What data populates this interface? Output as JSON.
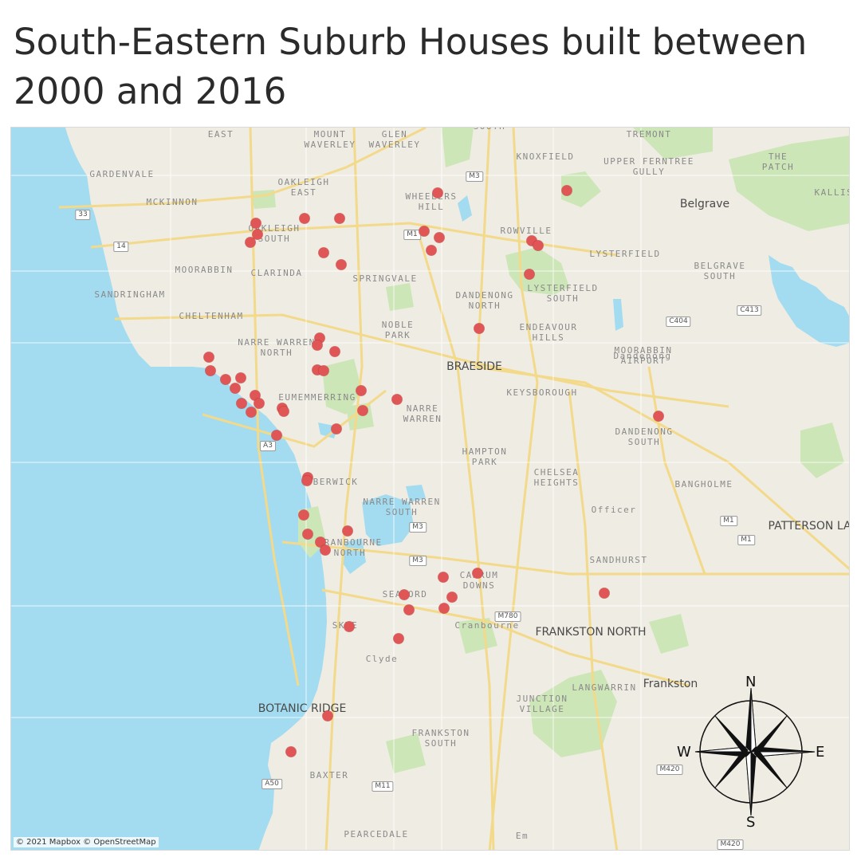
{
  "title": "South-Eastern Suburb Houses built between 2000 and 2016",
  "map": {
    "attribution": "© 2021 Mapbox © OpenStreetMap",
    "compass": {
      "n": "N",
      "s": "S",
      "e": "E",
      "w": "W"
    },
    "colors": {
      "water": "#a3dcf0",
      "land": "#efece3",
      "park": "#cde6b8",
      "road": "#f3d98a",
      "dot": "#e05555"
    },
    "labels": [
      "EAST",
      "MOUNT WAVERLEY",
      "GLEN WAVERLEY",
      "SOUTH",
      "TREMONT",
      "KNOXFIELD",
      "THE PATCH",
      "UPPER FERNTREE GULLY",
      "KALLISTA",
      "GARDENVALE",
      "OAKLEIGH EAST",
      "WHEELERS HILL",
      "MCKINNON",
      "OAKLEIGH SOUTH",
      "ROWVILLE",
      "Belgrave",
      "LYSTERFIELD",
      "BELGRAVE SOUTH",
      "MOORABBIN",
      "CLARINDA",
      "SPRINGVALE",
      "LYSTERFIELD SOUTH",
      "SANDRINGHAM",
      "DANDENONG NORTH",
      "CHELTENHAM",
      "NOBLE PARK",
      "ENDEAVOUR HILLS",
      "MOORABBIN AIRPORT",
      "NARRE WARREN NORTH",
      "Dandenong",
      "BRAESIDE",
      "EUMEMMERRING",
      "KEYSBOROUGH",
      "NARRE WARREN",
      "DANDENONG SOUTH",
      "HAMPTON PARK",
      "CHELSEA HEIGHTS",
      "BERWICK",
      "BANGHOLME",
      "NARRE WARREN SOUTH",
      "Officer",
      "PATTERSON LAKES",
      "CRANBOURNE NORTH",
      "SANDHURST",
      "CARRUM DOWNS",
      "SEAFORD",
      "SKYE",
      "Cranbourne",
      "FRANKSTON NORTH",
      "Clyde",
      "Frankston",
      "BOTANIC RIDGE",
      "JUNCTION VILLAGE",
      "LANGWARRIN",
      "FRANKSTON SOUTH",
      "BAXTER",
      "PEARCEDALE",
      "Em"
    ],
    "road_shields": [
      "M3",
      "33",
      "M1",
      "14",
      "C413",
      "C404",
      "A3",
      "M3",
      "M3",
      "M1",
      "M1",
      "M780",
      "M420",
      "A50",
      "M11",
      "M420"
    ],
    "house_count": 57
  }
}
